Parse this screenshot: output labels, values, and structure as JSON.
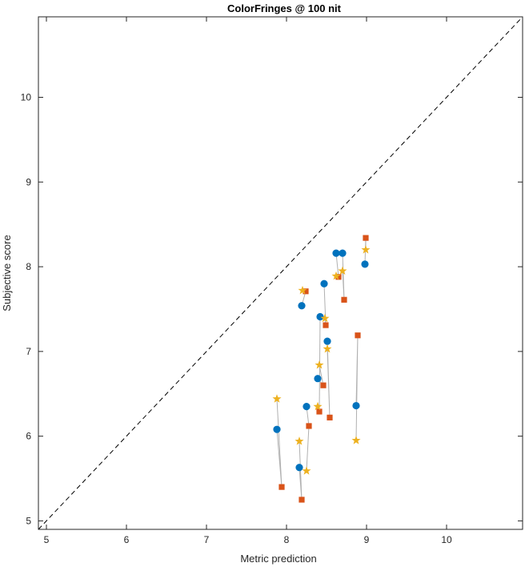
{
  "chart_data": {
    "type": "scatter",
    "title": "ColorFringes @ 100 nit",
    "xlabel": "Metric prediction",
    "ylabel": "Subjective score",
    "xlim": [
      4.9,
      10.95
    ],
    "ylim": [
      4.9,
      10.95
    ],
    "xticks": [
      5,
      6,
      7,
      8,
      9,
      10
    ],
    "yticks": [
      5,
      6,
      7,
      8,
      9,
      10
    ],
    "grid": false,
    "legend": "none",
    "reference_line": {
      "style": "dashed",
      "from": [
        4.9,
        4.9
      ],
      "to": [
        10.95,
        10.95
      ],
      "color": "#000000"
    },
    "connector_color": "#b0b0b0",
    "series": [
      {
        "marker": "circle",
        "color": "#0072bd",
        "points": [
          [
            7.88,
            6.08
          ],
          [
            8.16,
            5.63
          ],
          [
            8.25,
            6.35
          ],
          [
            8.19,
            7.54
          ],
          [
            8.47,
            7.8
          ],
          [
            8.39,
            6.68
          ],
          [
            8.42,
            7.41
          ],
          [
            8.51,
            7.12
          ],
          [
            8.62,
            8.16
          ],
          [
            8.7,
            8.16
          ],
          [
            8.87,
            6.36
          ],
          [
            8.98,
            8.03
          ]
        ]
      },
      {
        "marker": "square",
        "color": "#d95319",
        "points": [
          [
            7.94,
            5.4
          ],
          [
            8.19,
            5.25
          ],
          [
            8.28,
            6.12
          ],
          [
            8.24,
            7.71
          ],
          [
            8.49,
            7.31
          ],
          [
            8.46,
            6.6
          ],
          [
            8.41,
            6.29
          ],
          [
            8.54,
            6.22
          ],
          [
            8.65,
            7.88
          ],
          [
            8.72,
            7.61
          ],
          [
            8.89,
            7.19
          ],
          [
            8.99,
            8.34
          ]
        ]
      },
      {
        "marker": "star",
        "color": "#edb120",
        "points": [
          [
            7.88,
            6.44
          ],
          [
            8.16,
            5.94
          ],
          [
            8.25,
            5.59
          ],
          [
            8.2,
            7.72
          ],
          [
            8.48,
            7.39
          ],
          [
            8.41,
            6.84
          ],
          [
            8.39,
            6.35
          ],
          [
            8.51,
            7.03
          ],
          [
            8.62,
            7.89
          ],
          [
            8.7,
            7.95
          ],
          [
            8.87,
            5.95
          ],
          [
            8.99,
            8.2
          ]
        ]
      }
    ]
  }
}
